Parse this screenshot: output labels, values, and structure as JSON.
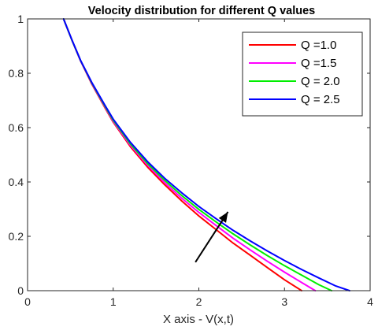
{
  "chart_data": {
    "type": "line",
    "title": "Velocity distribution for different Q values",
    "xlabel": "X axis - V(x,t)",
    "ylabel": "",
    "xlim": [
      0,
      4
    ],
    "ylim": [
      0,
      1
    ],
    "xticks": [
      "0",
      "1",
      "2",
      "3",
      "4"
    ],
    "yticks": [
      "0",
      "0.2",
      "0.4",
      "0.6",
      "0.8",
      "1"
    ],
    "grid": false,
    "legend_position": "top-right",
    "annotation": "arrow indicating increasing Q",
    "series": [
      {
        "name": "Q =1.0",
        "color": "#ff0000",
        "x": [
          0.42,
          0.52,
          0.62,
          0.75,
          0.9,
          1.0,
          1.2,
          1.4,
          1.6,
          1.8,
          2.0,
          2.2,
          2.4,
          2.6,
          2.8,
          3.0,
          3.2
        ],
        "y": [
          1.0,
          0.92,
          0.845,
          0.76,
          0.675,
          0.62,
          0.53,
          0.455,
          0.39,
          0.33,
          0.275,
          0.225,
          0.175,
          0.13,
          0.085,
          0.04,
          0.0
        ]
      },
      {
        "name": "Q =1.5",
        "color": "#ff00ff",
        "x": [
          0.42,
          0.52,
          0.62,
          0.75,
          0.9,
          1.0,
          1.2,
          1.4,
          1.6,
          1.8,
          2.0,
          2.2,
          2.4,
          2.6,
          2.8,
          3.0,
          3.2,
          3.36
        ],
        "y": [
          1.0,
          0.92,
          0.845,
          0.762,
          0.678,
          0.623,
          0.535,
          0.462,
          0.398,
          0.34,
          0.288,
          0.24,
          0.193,
          0.15,
          0.108,
          0.068,
          0.03,
          0.0
        ]
      },
      {
        "name": "Q = 2.0",
        "color": "#00ee00",
        "x": [
          0.42,
          0.52,
          0.62,
          0.75,
          0.9,
          1.0,
          1.2,
          1.4,
          1.6,
          1.8,
          2.0,
          2.2,
          2.4,
          2.6,
          2.8,
          3.0,
          3.2,
          3.4,
          3.55
        ],
        "y": [
          1.0,
          0.92,
          0.846,
          0.764,
          0.681,
          0.627,
          0.54,
          0.468,
          0.406,
          0.35,
          0.299,
          0.253,
          0.209,
          0.168,
          0.129,
          0.092,
          0.057,
          0.022,
          0.0
        ]
      },
      {
        "name": "Q = 2.5",
        "color": "#0000ff",
        "x": [
          0.42,
          0.52,
          0.62,
          0.75,
          0.9,
          1.0,
          1.2,
          1.4,
          1.6,
          1.8,
          2.0,
          2.2,
          2.4,
          2.6,
          2.8,
          3.0,
          3.2,
          3.4,
          3.6,
          3.76
        ],
        "y": [
          1.0,
          0.921,
          0.847,
          0.766,
          0.684,
          0.631,
          0.546,
          0.475,
          0.414,
          0.36,
          0.31,
          0.265,
          0.222,
          0.183,
          0.146,
          0.111,
          0.078,
          0.047,
          0.017,
          0.0
        ]
      }
    ]
  }
}
